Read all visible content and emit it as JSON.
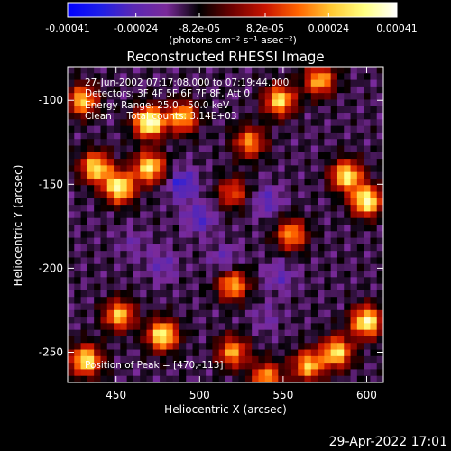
{
  "chart_data": {
    "type": "heatmap",
    "title": "Reconstructed RHESSI Image",
    "xlabel": "Heliocentric X (arcsec)",
    "ylabel": "Heliocentric Y (arcsec)",
    "xlim": [
      421,
      610
    ],
    "ylim": [
      -268,
      -80
    ],
    "xticks": [
      450,
      500,
      550,
      600
    ],
    "yticks": [
      -100,
      -150,
      -200,
      -250
    ],
    "annotations": [
      "27-Jun-2002 07:17:08.000 to 07:19:44.000",
      "Detectors: 3F 4F 5F 6F 7F 8F, Att 0",
      "Energy Range: 25.0 - 50.0 keV",
      "Clean     Total counts: 3.14E+03",
      "Position of Peak = [470,-113]"
    ],
    "colorbar": {
      "min": -0.00041,
      "max": 0.00041,
      "ticks": [
        "-0.00041",
        "-0.00024",
        "-8.2e-05",
        "8.2e-05",
        "0.00024",
        "0.00041"
      ],
      "unit_label": "(photons cm⁻² s⁻¹ asec⁻²)",
      "colors": [
        "#0000ff",
        "#1e1ee6",
        "#5a28b4",
        "#7a2a9a",
        "#000000",
        "#6e0000",
        "#c81400",
        "#ff6400",
        "#ffc832",
        "#ffff80",
        "#ffffff"
      ]
    },
    "peak": {
      "x": 470,
      "y": -113
    },
    "grid_dims": {
      "cols": 48,
      "rows": 48
    },
    "hotspots": [
      {
        "x": 470,
        "y": -113,
        "v": 0.00041
      },
      {
        "x": 438,
        "y": -140,
        "v": 0.0003
      },
      {
        "x": 470,
        "y": -140,
        "v": 0.00032
      },
      {
        "x": 452,
        "y": -152,
        "v": 0.00036
      },
      {
        "x": 490,
        "y": -110,
        "v": 0.00026
      },
      {
        "x": 548,
        "y": -100,
        "v": 0.0003
      },
      {
        "x": 572,
        "y": -88,
        "v": 0.00024
      },
      {
        "x": 600,
        "y": -160,
        "v": 0.00036
      },
      {
        "x": 588,
        "y": -145,
        "v": 0.00032
      },
      {
        "x": 555,
        "y": -180,
        "v": 0.00022
      },
      {
        "x": 520,
        "y": -210,
        "v": 0.00024
      },
      {
        "x": 520,
        "y": -250,
        "v": 0.00022
      },
      {
        "x": 478,
        "y": -240,
        "v": 0.00034
      },
      {
        "x": 452,
        "y": -228,
        "v": 0.00026
      },
      {
        "x": 432,
        "y": -255,
        "v": 0.00032
      },
      {
        "x": 600,
        "y": -232,
        "v": 0.00036
      },
      {
        "x": 582,
        "y": -250,
        "v": 0.0003
      },
      {
        "x": 565,
        "y": -258,
        "v": 0.00026
      },
      {
        "x": 540,
        "y": -265,
        "v": 0.00022
      },
      {
        "x": 430,
        "y": -100,
        "v": 0.00026
      },
      {
        "x": 530,
        "y": -125,
        "v": 0.0002
      },
      {
        "x": 520,
        "y": -155,
        "v": 0.00014
      }
    ],
    "coldspots": [
      {
        "x": 490,
        "y": -150,
        "v": -0.0003
      },
      {
        "x": 500,
        "y": -170,
        "v": -0.00026
      },
      {
        "x": 540,
        "y": -160,
        "v": -0.00024
      },
      {
        "x": 515,
        "y": -195,
        "v": -0.00022
      },
      {
        "x": 478,
        "y": -198,
        "v": -0.00022
      },
      {
        "x": 548,
        "y": -205,
        "v": -0.00022
      },
      {
        "x": 460,
        "y": -185,
        "v": -0.00018
      },
      {
        "x": 540,
        "y": -230,
        "v": -0.00018
      }
    ]
  },
  "footer": {
    "timestamp": "29-Apr-2022 17:01"
  }
}
